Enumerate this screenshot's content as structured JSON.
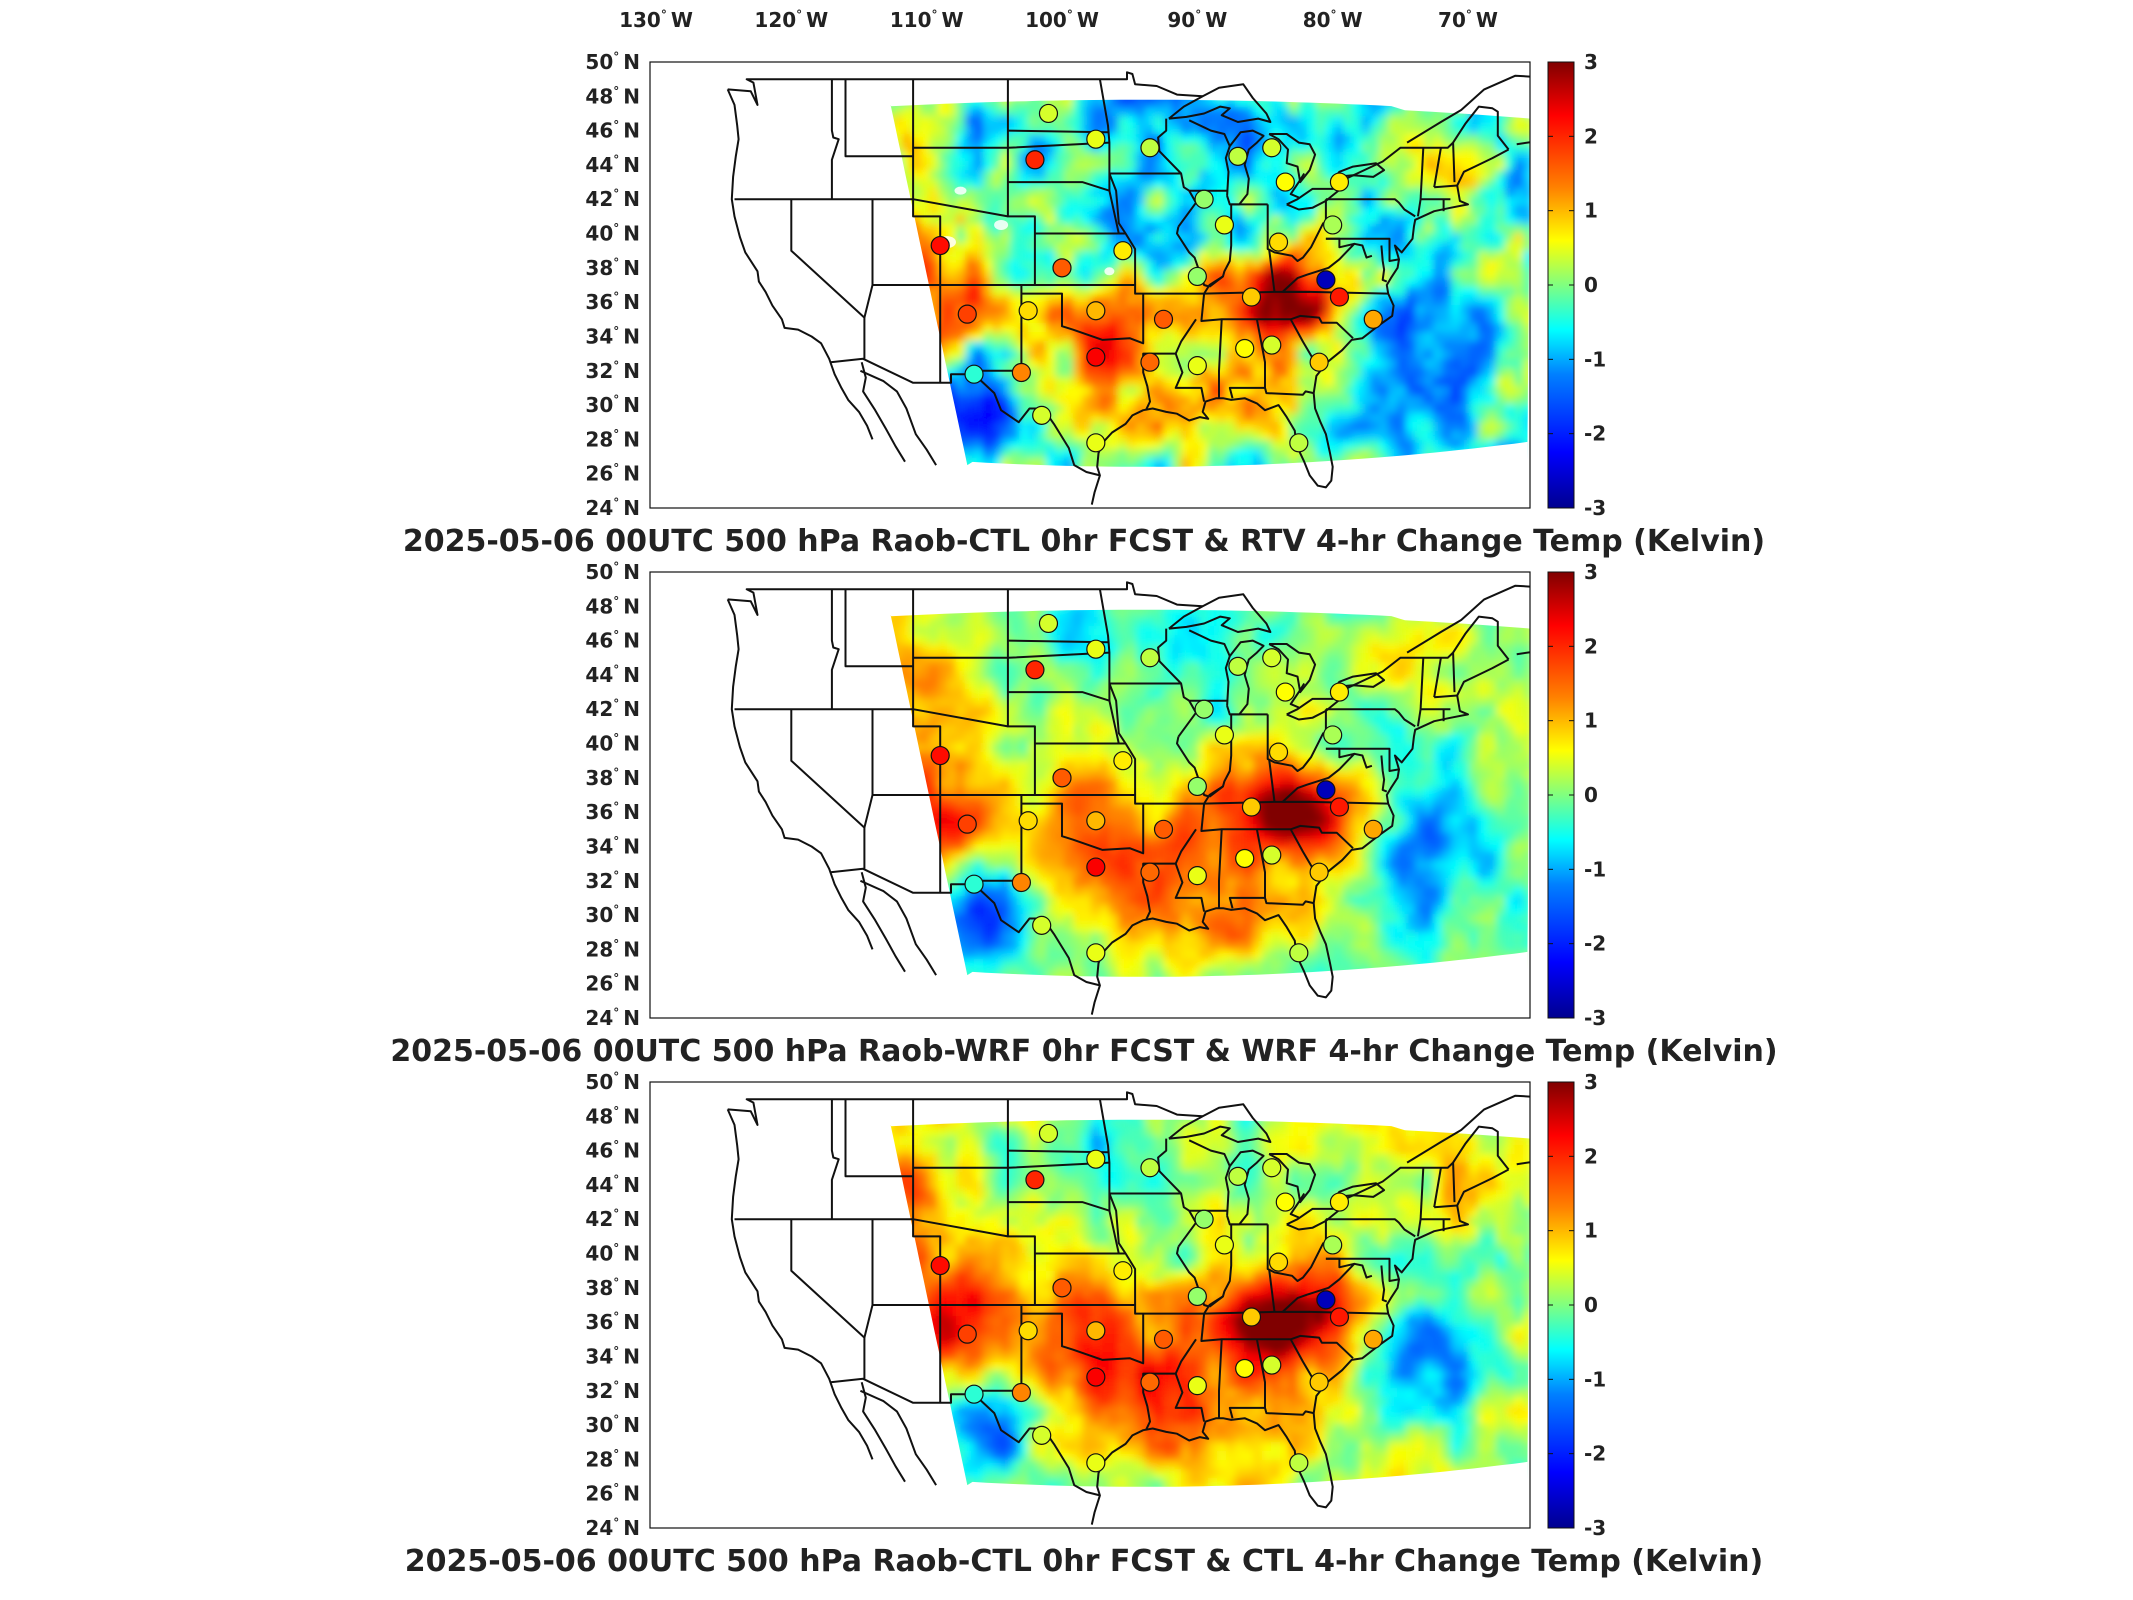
{
  "figure": {
    "lon_ticks": [
      "130",
      "120",
      "110",
      "100",
      "90",
      "80",
      "70"
    ],
    "lon_suffix": "W",
    "lat_ticks": [
      "50",
      "48",
      "46",
      "44",
      "42",
      "40",
      "38",
      "36",
      "34",
      "32",
      "30",
      "28",
      "26",
      "24"
    ],
    "lat_suffix": "N",
    "colorbar": {
      "ticks": [
        "3",
        "2",
        "1",
        "0",
        "-1",
        "-2",
        "-3"
      ],
      "min": -3,
      "max": 3,
      "colormap": [
        "#00008f",
        "#0000ff",
        "#0080ff",
        "#00ffff",
        "#80ff80",
        "#ffff00",
        "#ff8000",
        "#ff0000",
        "#800000"
      ]
    },
    "colors": {
      "land_line": "#111111",
      "frame": "#111111",
      "background": "#ffffff"
    }
  },
  "panels": [
    {
      "title": "2025-05-06 00UTC 500 hPa Raob-CTL 0hr FCST & RTV 4-hr Change Temp (Kelvin)",
      "field": "rtv"
    },
    {
      "title": "2025-05-06 00UTC 500 hPa Raob-WRF 0hr FCST & WRF 4-hr Change Temp (Kelvin)",
      "field": "wrf"
    },
    {
      "title": "2025-05-06 00UTC 500 hPa Raob-CTL 0hr FCST & CTL 4-hr Change Temp (Kelvin)",
      "field": "ctl"
    }
  ],
  "stations": [
    {
      "lon": -101.0,
      "lat": 47.0,
      "value": 0.4
    },
    {
      "lon": -97.5,
      "lat": 45.5,
      "value": 0.5
    },
    {
      "lon": -102.0,
      "lat": 44.3,
      "value": 2.0
    },
    {
      "lon": -93.5,
      "lat": 45.0,
      "value": 0.3
    },
    {
      "lon": -84.5,
      "lat": 45.0,
      "value": 0.4
    },
    {
      "lon": -87.0,
      "lat": 44.5,
      "value": 0.3
    },
    {
      "lon": -83.5,
      "lat": 43.0,
      "value": 0.6
    },
    {
      "lon": -79.5,
      "lat": 43.0,
      "value": 0.7
    },
    {
      "lon": -89.5,
      "lat": 42.0,
      "value": 0.1
    },
    {
      "lon": -88.0,
      "lat": 40.5,
      "value": 0.5
    },
    {
      "lon": -84.0,
      "lat": 39.5,
      "value": 0.8
    },
    {
      "lon": -80.0,
      "lat": 40.5,
      "value": 0.2
    },
    {
      "lon": -109.0,
      "lat": 39.3,
      "value": 2.2
    },
    {
      "lon": -100.0,
      "lat": 38.0,
      "value": 1.6
    },
    {
      "lon": -95.5,
      "lat": 39.0,
      "value": 0.7
    },
    {
      "lon": -90.0,
      "lat": 37.5,
      "value": 0.1
    },
    {
      "lon": -80.5,
      "lat": 37.3,
      "value": -2.7
    },
    {
      "lon": -107.0,
      "lat": 35.3,
      "value": 1.8
    },
    {
      "lon": -102.5,
      "lat": 35.5,
      "value": 0.8
    },
    {
      "lon": -97.5,
      "lat": 35.5,
      "value": 1.0
    },
    {
      "lon": -92.5,
      "lat": 35.0,
      "value": 1.6
    },
    {
      "lon": -86.0,
      "lat": 36.3,
      "value": 0.9
    },
    {
      "lon": -79.5,
      "lat": 36.3,
      "value": 2.1
    },
    {
      "lon": -97.5,
      "lat": 32.8,
      "value": 2.3
    },
    {
      "lon": -93.5,
      "lat": 32.5,
      "value": 1.5
    },
    {
      "lon": -90.0,
      "lat": 32.3,
      "value": 0.5
    },
    {
      "lon": -86.5,
      "lat": 33.3,
      "value": 0.6
    },
    {
      "lon": -84.5,
      "lat": 33.5,
      "value": 0.4
    },
    {
      "lon": -81.0,
      "lat": 32.5,
      "value": 0.9
    },
    {
      "lon": -77.0,
      "lat": 35.0,
      "value": 1.1
    },
    {
      "lon": -106.5,
      "lat": 31.8,
      "value": -0.4
    },
    {
      "lon": -103.0,
      "lat": 31.9,
      "value": 1.3
    },
    {
      "lon": -101.5,
      "lat": 29.4,
      "value": 0.4
    },
    {
      "lon": -97.5,
      "lat": 27.8,
      "value": 0.5
    },
    {
      "lon": -82.5,
      "lat": 27.8,
      "value": 0.3
    }
  ]
}
